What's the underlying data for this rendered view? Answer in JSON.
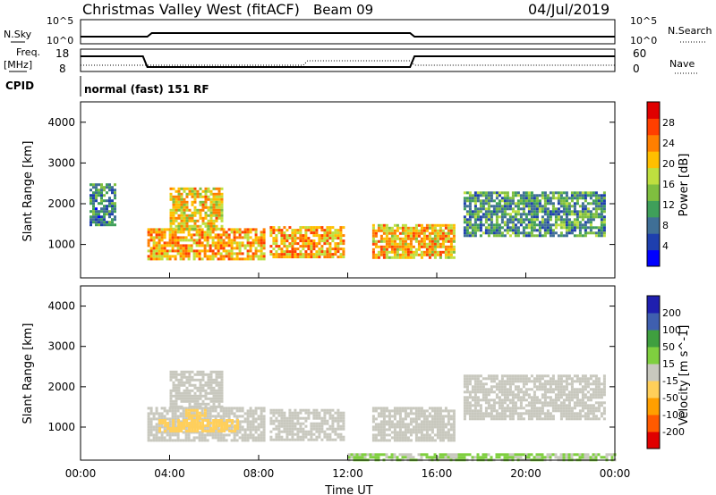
{
  "header": {
    "title": "Christmas Valley West (fitACF)",
    "beam": "Beam 09",
    "date": "04/Jul/2019"
  },
  "strips": {
    "nsky_label": "N.Sky",
    "nsearch_label": "N.Search",
    "freq_label_1": "Freq.",
    "freq_label_2": "[MHz]",
    "nave_label": "Nave",
    "cpid_label": "CPID",
    "cpid_text": "normal (fast) 151 RF",
    "noise_ticks": [
      "10^5",
      "10^0"
    ],
    "noise_ticks_right": [
      "10^5",
      "10^0"
    ],
    "freq_ticks": [
      "18",
      "8"
    ],
    "nave_ticks": [
      "60",
      "0"
    ]
  },
  "colors": {
    "power": [
      "#0000ff",
      "#1e3fae",
      "#3f6f96",
      "#3f9f5a",
      "#7fbf3f",
      "#bfdf3f",
      "#ffbf00",
      "#ff7f00",
      "#ff3f00",
      "#e00000"
    ],
    "velocity": [
      "#e00000",
      "#ff5a00",
      "#ff9f00",
      "#ffcf5a",
      "#c8c8be",
      "#7fcf3f",
      "#3f9f3f",
      "#3f5faf",
      "#1f1faf"
    ],
    "ground_scatter": "#c8c8be"
  },
  "chart_data": [
    {
      "type": "heatmap",
      "name": "power",
      "ylabel": "Slant Range [km]",
      "y_ticks": [
        "4000",
        "3000",
        "2000",
        "1000"
      ],
      "ylim": [
        180,
        4500
      ],
      "colorbar_label": "Power [dB]",
      "colorbar_ticks": [
        "28",
        "24",
        "20",
        "16",
        "12",
        "8",
        "4"
      ],
      "clim": [
        0,
        32
      ],
      "x": [
        "00:00",
        "04:00",
        "08:00",
        "12:00",
        "16:00",
        "20:00",
        "00:00"
      ],
      "xlim_hours": [
        0,
        24
      ],
      "regions": [
        {
          "t0": 3.0,
          "t1": 8.3,
          "r0": 650,
          "r1": 1400,
          "value": 22
        },
        {
          "t0": 4.0,
          "t1": 6.3,
          "r0": 1400,
          "r1": 2400,
          "value": 20
        },
        {
          "t0": 8.5,
          "t1": 11.8,
          "r0": 700,
          "r1": 1450,
          "value": 22
        },
        {
          "t0": 13.1,
          "t1": 16.8,
          "r0": 700,
          "r1": 1500,
          "value": 21
        },
        {
          "t0": 17.2,
          "t1": 23.5,
          "r0": 1200,
          "r1": 2300,
          "value": 11
        },
        {
          "t0": 0.4,
          "t1": 1.5,
          "r0": 1450,
          "r1": 2500,
          "value": 9
        }
      ]
    },
    {
      "type": "heatmap",
      "name": "velocity",
      "ylabel": "Slant Range [km]",
      "y_ticks": [
        "4000",
        "3000",
        "2000",
        "1000"
      ],
      "ylim": [
        180,
        4500
      ],
      "colorbar_label": "Velocity [m s^-1]",
      "colorbar_ticks": [
        "200",
        "100",
        "50",
        "15",
        "-15",
        "-50",
        "-100",
        "-200"
      ],
      "clim": [
        -250,
        250
      ],
      "x": [
        "00:00",
        "04:00",
        "08:00",
        "12:00",
        "16:00",
        "20:00",
        "00:00"
      ],
      "xlabel": "Time UT",
      "xlim_hours": [
        0,
        24
      ],
      "regions": [
        {
          "t0": 3.0,
          "t1": 8.3,
          "r0": 650,
          "r1": 1500,
          "value": 0
        },
        {
          "t0": 4.0,
          "t1": 6.3,
          "r0": 1500,
          "r1": 2400,
          "value": 0
        },
        {
          "t0": 8.5,
          "t1": 11.8,
          "r0": 700,
          "r1": 1450,
          "value": 0
        },
        {
          "t0": 13.1,
          "t1": 16.8,
          "r0": 700,
          "r1": 1500,
          "value": 0
        },
        {
          "t0": 17.2,
          "t1": 23.5,
          "r0": 1200,
          "r1": 2300,
          "value": 0
        },
        {
          "t0": 3.5,
          "t1": 7.0,
          "r0": 900,
          "r1": 1200,
          "value": -60
        },
        {
          "t0": 4.7,
          "t1": 5.6,
          "r0": 1200,
          "r1": 1450,
          "value": -70
        },
        {
          "t0": 12.0,
          "t1": 24.0,
          "r0": 180,
          "r1": 350,
          "value": 30
        }
      ]
    }
  ]
}
